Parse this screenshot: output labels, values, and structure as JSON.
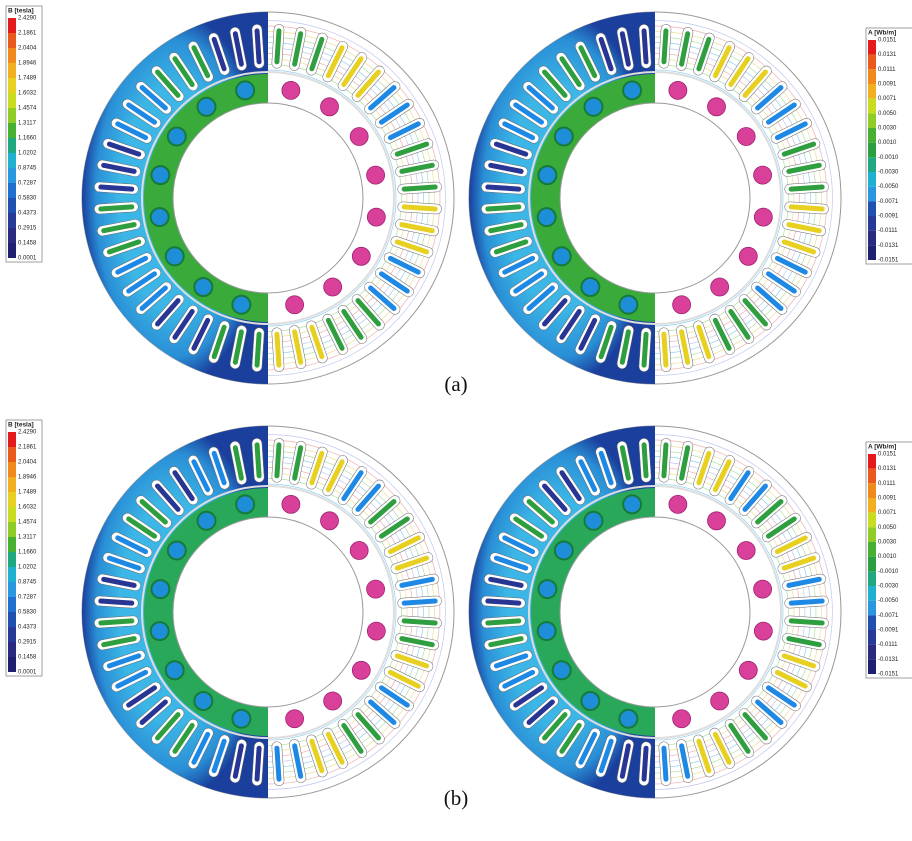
{
  "figure": {
    "panels": [
      {
        "label": "(a)",
        "legends": [
          {
            "title": "B [tesla]",
            "levels": [
              "2.4290",
              "2.1861",
              "2.0404",
              "1.8946",
              "1.7489",
              "1.6032",
              "1.4574",
              "1.3117",
              "1.1660",
              "1.0202",
              "0.8745",
              "0.7287",
              "0.5830",
              "0.4373",
              "0.2915",
              "0.1458",
              "0.0001"
            ]
          },
          {
            "title": "A [Wb/m]",
            "levels": [
              "0.0151",
              "0.0131",
              "0.0111",
              "0.0091",
              "0.0071",
              "0.0050",
              "0.0030",
              "0.0010",
              "-0.0010",
              "-0.0030",
              "-0.0050",
              "-0.0071",
              "-0.0091",
              "-0.0111",
              "-0.0131",
              "-0.0151"
            ]
          }
        ]
      },
      {
        "label": "(b)",
        "legends": [
          {
            "title": "B [tesla]",
            "levels": [
              "2.4290",
              "2.1861",
              "2.0404",
              "1.8946",
              "1.7489",
              "1.6032",
              "1.4574",
              "1.3117",
              "1.1660",
              "1.0202",
              "0.8745",
              "0.7287",
              "0.5830",
              "0.4373",
              "0.2915",
              "0.1458",
              "0.0001"
            ]
          },
          {
            "title": "A [Wb/m]",
            "levels": [
              "0.0151",
              "0.0131",
              "0.0111",
              "0.0091",
              "0.0071",
              "0.0050",
              "0.0030",
              "0.0010",
              "-0.0010",
              "-0.0030",
              "-0.0050",
              "-0.0071",
              "-0.0091",
              "-0.0111",
              "-0.0131",
              "-0.0151"
            ]
          }
        ]
      }
    ]
  }
}
